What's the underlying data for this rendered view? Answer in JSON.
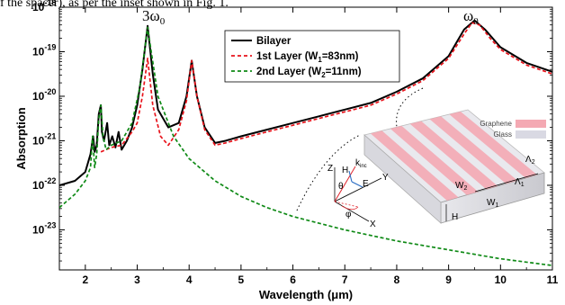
{
  "caption_fragment": "f the spacer), as per the inset shown in Fig. 1.",
  "chart_data": {
    "type": "line",
    "title": "",
    "xlabel": "Wavelength (μm)",
    "ylabel": "Absorption",
    "xlim": [
      1.5,
      11
    ],
    "ylim_log10": [
      -23.9,
      -18
    ],
    "y_scale": "log",
    "x_ticks": [
      "2",
      "3",
      "4",
      "5",
      "6",
      "7",
      "8",
      "9",
      "10",
      "11"
    ],
    "y_ticks": [
      {
        "base": "10",
        "exp": "-18"
      },
      {
        "base": "10",
        "exp": "-19"
      },
      {
        "base": "10",
        "exp": "-20"
      },
      {
        "base": "10",
        "exp": "-21"
      },
      {
        "base": "10",
        "exp": "-22"
      },
      {
        "base": "10",
        "exp": "-23"
      }
    ],
    "annotations": {
      "peak_3w0": "3ω",
      "peak_3w0_sub": "0",
      "peak_w0": "ω",
      "peak_w0_sub": "0"
    },
    "legend_position": "top-center",
    "series": [
      {
        "name": "Bilayer",
        "color": "#000000",
        "style": "solid",
        "points": [
          [
            1.5,
            -22.0
          ],
          [
            1.8,
            -21.9
          ],
          [
            2.0,
            -21.7
          ],
          [
            2.1,
            -21.3
          ],
          [
            2.15,
            -20.9
          ],
          [
            2.18,
            -21.25
          ],
          [
            2.22,
            -21.1
          ],
          [
            2.26,
            -20.4
          ],
          [
            2.3,
            -20.2
          ],
          [
            2.32,
            -20.8
          ],
          [
            2.36,
            -21.0
          ],
          [
            2.42,
            -20.6
          ],
          [
            2.46,
            -21.1
          ],
          [
            2.52,
            -20.9
          ],
          [
            2.58,
            -21.15
          ],
          [
            2.64,
            -20.8
          ],
          [
            2.7,
            -21.2
          ],
          [
            2.8,
            -21.0
          ],
          [
            2.9,
            -20.7
          ],
          [
            3.0,
            -20.2
          ],
          [
            3.1,
            -19.4
          ],
          [
            3.2,
            -18.42
          ],
          [
            3.3,
            -19.5
          ],
          [
            3.4,
            -20.3
          ],
          [
            3.6,
            -20.7
          ],
          [
            3.8,
            -20.6
          ],
          [
            3.95,
            -20.0
          ],
          [
            4.05,
            -19.2
          ],
          [
            4.15,
            -20.0
          ],
          [
            4.3,
            -20.7
          ],
          [
            4.5,
            -21.05
          ],
          [
            4.7,
            -21.0
          ],
          [
            5.0,
            -20.9
          ],
          [
            5.5,
            -20.75
          ],
          [
            6.0,
            -20.6
          ],
          [
            6.5,
            -20.45
          ],
          [
            7.0,
            -20.3
          ],
          [
            7.5,
            -20.15
          ],
          [
            8.0,
            -19.9
          ],
          [
            8.5,
            -19.6
          ],
          [
            9.0,
            -19.1
          ],
          [
            9.3,
            -18.5
          ],
          [
            9.5,
            -18.3
          ],
          [
            9.7,
            -18.5
          ],
          [
            10.0,
            -18.9
          ],
          [
            10.5,
            -19.25
          ],
          [
            11.0,
            -19.45
          ]
        ]
      },
      {
        "name": "1st Layer (W",
        "name_sub": "1",
        "name_rest": "=83nm)",
        "color": "#e8131b",
        "style": "dashed",
        "points": [
          [
            2.3,
            -21.25
          ],
          [
            2.5,
            -21.15
          ],
          [
            2.7,
            -21.1
          ],
          [
            2.9,
            -20.8
          ],
          [
            3.0,
            -20.6
          ],
          [
            3.1,
            -20.0
          ],
          [
            3.2,
            -19.15
          ],
          [
            3.3,
            -20.2
          ],
          [
            3.45,
            -20.9
          ],
          [
            3.6,
            -21.1
          ],
          [
            3.8,
            -20.75
          ],
          [
            3.95,
            -20.1
          ],
          [
            4.05,
            -19.2
          ],
          [
            4.15,
            -20.0
          ],
          [
            4.3,
            -20.75
          ],
          [
            4.5,
            -21.1
          ],
          [
            4.7,
            -21.05
          ],
          [
            5.0,
            -20.95
          ],
          [
            5.5,
            -20.8
          ],
          [
            6.0,
            -20.65
          ],
          [
            6.5,
            -20.5
          ],
          [
            7.0,
            -20.35
          ],
          [
            7.5,
            -20.2
          ],
          [
            8.0,
            -19.95
          ],
          [
            8.5,
            -19.65
          ],
          [
            9.0,
            -19.15
          ],
          [
            9.3,
            -18.6
          ],
          [
            9.45,
            -18.35
          ],
          [
            9.6,
            -18.4
          ],
          [
            9.8,
            -18.7
          ],
          [
            10.0,
            -18.95
          ],
          [
            10.5,
            -19.3
          ],
          [
            11.0,
            -19.5
          ]
        ]
      },
      {
        "name": "2nd Layer (W",
        "name_sub": "2",
        "name_rest": "=11nm)",
        "color": "#0f8a16",
        "style": "dashed",
        "points": [
          [
            1.5,
            -22.5
          ],
          [
            1.8,
            -22.2
          ],
          [
            2.0,
            -21.9
          ],
          [
            2.1,
            -21.6
          ],
          [
            2.14,
            -20.9
          ],
          [
            2.18,
            -21.6
          ],
          [
            2.22,
            -21.3
          ],
          [
            2.26,
            -20.5
          ],
          [
            2.3,
            -20.2
          ],
          [
            2.34,
            -20.9
          ],
          [
            2.4,
            -21.2
          ],
          [
            2.5,
            -21.1
          ],
          [
            2.7,
            -21.0
          ],
          [
            2.9,
            -20.6
          ],
          [
            3.05,
            -19.8
          ],
          [
            3.15,
            -18.9
          ],
          [
            3.2,
            -18.45
          ],
          [
            3.27,
            -19.0
          ],
          [
            3.4,
            -20.0
          ],
          [
            3.7,
            -20.9
          ],
          [
            4.0,
            -21.4
          ],
          [
            4.5,
            -21.9
          ],
          [
            5.0,
            -22.25
          ],
          [
            5.5,
            -22.5
          ],
          [
            6.0,
            -22.7
          ],
          [
            7.0,
            -23.0
          ],
          [
            8.0,
            -23.25
          ],
          [
            9.0,
            -23.45
          ],
          [
            10.0,
            -23.65
          ],
          [
            11.0,
            -23.8
          ]
        ]
      }
    ],
    "inset": {
      "material_1": "Graphene",
      "material_2": "Glass",
      "axes": [
        "Z",
        "Y",
        "X"
      ],
      "labels": [
        "H",
        "E",
        "k",
        "θ",
        "φ",
        "W",
        "W",
        "Λ",
        "Λ",
        "H"
      ],
      "label_subs": [
        "",
        "",
        "inc",
        "",
        "",
        "2",
        "1",
        "1",
        "2",
        ""
      ]
    }
  }
}
